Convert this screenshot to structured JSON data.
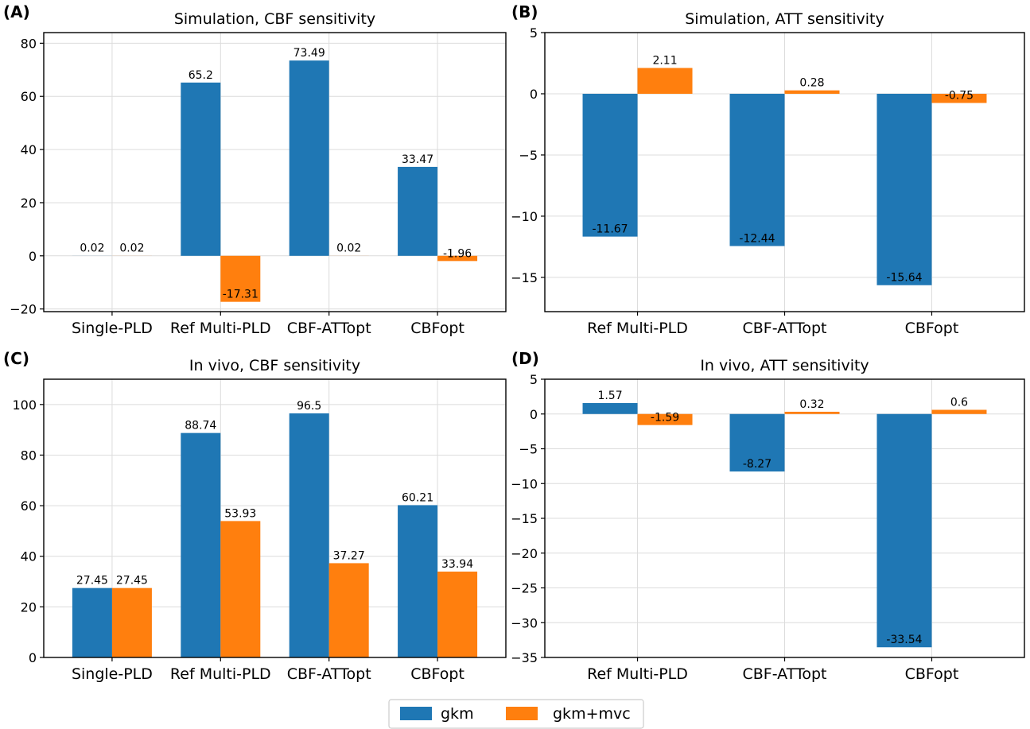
{
  "colors": {
    "gkm": "#1f77b4",
    "gkm_mvc": "#ff7f0e"
  },
  "legend": {
    "items": [
      {
        "label": "gkm",
        "color": "#1f77b4"
      },
      {
        "label": "gkm+mvc",
        "color": "#ff7f0e"
      }
    ],
    "placement": "bottom-center"
  },
  "chart_data": [
    {
      "letter": "(A)",
      "title": "Simulation, CBF sensitivity",
      "type": "bar",
      "categories": [
        "Single-PLD",
        "Ref Multi-PLD",
        "CBF-ATTopt",
        "CBFopt"
      ],
      "series": [
        {
          "name": "gkm",
          "values": [
            0.02,
            65.2,
            73.49,
            33.47
          ],
          "labels": [
            "0.02",
            "65.2",
            "73.49",
            "33.47"
          ]
        },
        {
          "name": "gkm+mvc",
          "values": [
            0.02,
            -17.31,
            0.02,
            -1.96
          ],
          "labels": [
            "0.02",
            "-17.31",
            "0.02",
            "-1.96"
          ]
        }
      ],
      "ylim": [
        -21,
        84
      ],
      "yticks": [
        -20,
        0,
        20,
        40,
        60,
        80
      ],
      "ytick_labels": [
        "−20",
        "0",
        "20",
        "40",
        "60",
        "80"
      ],
      "grid": true
    },
    {
      "letter": "(B)",
      "title": "Simulation, ATT sensitivity",
      "type": "bar",
      "categories": [
        "Ref Multi-PLD",
        "CBF-ATTopt",
        "CBFopt"
      ],
      "series": [
        {
          "name": "gkm",
          "values": [
            -11.67,
            -12.44,
            -15.64
          ],
          "labels": [
            "-11.67",
            "-12.44",
            "-15.64"
          ]
        },
        {
          "name": "gkm+mvc",
          "values": [
            2.11,
            0.28,
            -0.75
          ],
          "labels": [
            "2.11",
            "0.28",
            "-0.75"
          ]
        }
      ],
      "ylim": [
        -17.8,
        5.0
      ],
      "yticks": [
        -15,
        -10,
        -5,
        0,
        5
      ],
      "ytick_labels": [
        "−15",
        "−10",
        "−5",
        "0",
        "5"
      ],
      "grid": true
    },
    {
      "letter": "(C)",
      "title": "In vivo, CBF sensitivity",
      "type": "bar",
      "categories": [
        "Single-PLD",
        "Ref Multi-PLD",
        "CBF-ATTopt",
        "CBFopt"
      ],
      "series": [
        {
          "name": "gkm",
          "values": [
            27.45,
            88.74,
            96.5,
            60.21
          ],
          "labels": [
            "27.45",
            "88.74",
            "96.5",
            "60.21"
          ]
        },
        {
          "name": "gkm+mvc",
          "values": [
            27.45,
            53.93,
            37.27,
            33.94
          ],
          "labels": [
            "27.45",
            "53.93",
            "37.27",
            "33.94"
          ]
        }
      ],
      "ylim": [
        0,
        110
      ],
      "yticks": [
        0,
        20,
        40,
        60,
        80,
        100
      ],
      "ytick_labels": [
        "0",
        "20",
        "40",
        "60",
        "80",
        "100"
      ],
      "grid": true
    },
    {
      "letter": "(D)",
      "title": "In vivo, ATT sensitivity",
      "type": "bar",
      "categories": [
        "Ref Multi-PLD",
        "CBF-ATTopt",
        "CBFopt"
      ],
      "series": [
        {
          "name": "gkm",
          "values": [
            1.57,
            -8.27,
            -33.54
          ],
          "labels": [
            "1.57",
            "-8.27",
            "-33.54"
          ]
        },
        {
          "name": "gkm+mvc",
          "values": [
            -1.59,
            0.32,
            0.6
          ],
          "labels": [
            "-1.59",
            "0.32",
            "0.6"
          ]
        }
      ],
      "ylim": [
        -35,
        5
      ],
      "yticks": [
        -35,
        -30,
        -25,
        -20,
        -15,
        -10,
        -5,
        0,
        5
      ],
      "ytick_labels": [
        "−35",
        "−30",
        "−25",
        "−20",
        "−15",
        "−10",
        "−5",
        "0",
        "5"
      ],
      "grid": true
    }
  ]
}
